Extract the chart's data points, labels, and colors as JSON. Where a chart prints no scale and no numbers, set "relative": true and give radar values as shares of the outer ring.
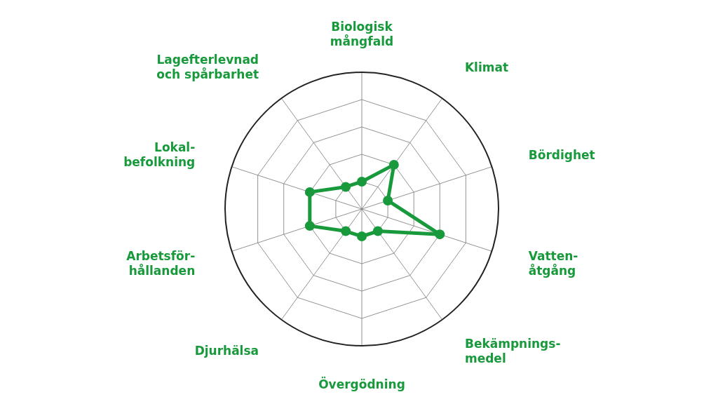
{
  "chart_data": {
    "type": "radar",
    "relative": true,
    "grid": true,
    "marker": "circle",
    "categories": [
      "Biologisk\nmångfald",
      "Klimat",
      "Bördighet",
      "Vatten-\nåtgång",
      "Bekämpnings-\nmedel",
      "Övergödning",
      "Djurhälsa",
      "Arbetsför-\nhållanden",
      "Lokal-\nbefolkning",
      "Lagefterlevnad\noch spårbarhet"
    ],
    "series": [
      {
        "color": "#189a3c",
        "values": [
          0.2,
          0.4,
          0.2,
          0.6,
          0.2,
          0.2,
          0.2,
          0.4,
          0.4,
          0.2
        ]
      }
    ]
  }
}
